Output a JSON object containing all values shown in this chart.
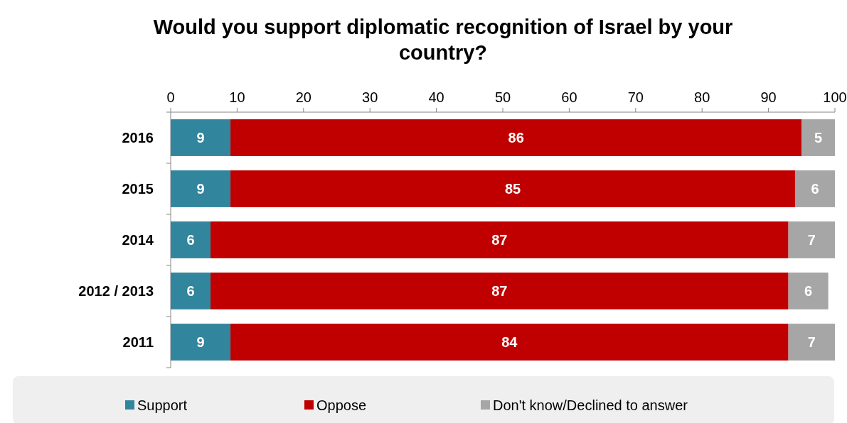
{
  "chart_data": {
    "type": "bar",
    "title": "Would you support diplomatic recognition of Israel by your country?",
    "orientation": "horizontal",
    "stacked": true,
    "categories": [
      "2016",
      "2015",
      "2014",
      "2012 / 2013",
      "2011"
    ],
    "series": [
      {
        "name": "Support",
        "color": "#31859c",
        "values": [
          9,
          9,
          6,
          6,
          9
        ]
      },
      {
        "name": "Oppose",
        "color": "#c00000",
        "values": [
          86,
          85,
          87,
          87,
          84
        ]
      },
      {
        "name": "Don't know/Declined to answer",
        "color": "#a6a6a6",
        "values": [
          5,
          6,
          7,
          6,
          7
        ]
      }
    ],
    "xlim": [
      0,
      100
    ],
    "xticks": [
      0,
      10,
      20,
      30,
      40,
      50,
      60,
      70,
      80,
      90,
      100
    ],
    "data_labels": true,
    "legend": "bottom",
    "grid": false
  }
}
